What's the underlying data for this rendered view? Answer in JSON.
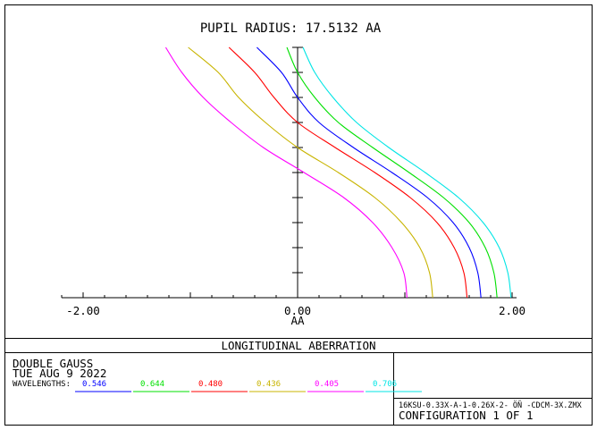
{
  "chart_data": {
    "type": "line",
    "title": "PUPIL RADIUS: 17.5132  AA",
    "xlabel": "AA",
    "xlim": [
      -2.2,
      2.0
    ],
    "ylim": [
      0,
      1
    ],
    "x_tick_labels": [
      {
        "value": -2.0,
        "label": "-2.00"
      },
      {
        "value": 0.0,
        "label": "0.00"
      },
      {
        "value": 2.0,
        "label": "2.00"
      }
    ],
    "grid": false,
    "series": [
      {
        "name": "0.546",
        "color": "#0000ff",
        "points": [
          [
            1.71,
            0
          ],
          [
            1.68,
            0.1
          ],
          [
            1.6,
            0.2
          ],
          [
            1.45,
            0.3
          ],
          [
            1.21,
            0.4
          ],
          [
            0.88,
            0.5
          ],
          [
            0.52,
            0.6
          ],
          [
            0.2,
            0.7
          ],
          [
            0.0,
            0.8
          ],
          [
            -0.15,
            0.9
          ],
          [
            -0.38,
            1.0
          ]
        ]
      },
      {
        "name": "0.644",
        "color": "#00e000",
        "points": [
          [
            1.86,
            0
          ],
          [
            1.83,
            0.1
          ],
          [
            1.75,
            0.2
          ],
          [
            1.6,
            0.3
          ],
          [
            1.36,
            0.4
          ],
          [
            1.04,
            0.5
          ],
          [
            0.7,
            0.6
          ],
          [
            0.38,
            0.7
          ],
          [
            0.16,
            0.8
          ],
          [
            0.0,
            0.9
          ],
          [
            -0.1,
            1.0
          ]
        ]
      },
      {
        "name": "0.480",
        "color": "#ff0000",
        "points": [
          [
            1.58,
            0
          ],
          [
            1.55,
            0.1
          ],
          [
            1.46,
            0.2
          ],
          [
            1.3,
            0.3
          ],
          [
            1.05,
            0.4
          ],
          [
            0.72,
            0.5
          ],
          [
            0.35,
            0.6
          ],
          [
            0.0,
            0.7
          ],
          [
            -0.22,
            0.8
          ],
          [
            -0.4,
            0.9
          ],
          [
            -0.64,
            1.0
          ]
        ]
      },
      {
        "name": "0.436",
        "color": "#c8b400",
        "points": [
          [
            1.26,
            0
          ],
          [
            1.23,
            0.1
          ],
          [
            1.14,
            0.2
          ],
          [
            0.97,
            0.3
          ],
          [
            0.72,
            0.4
          ],
          [
            0.38,
            0.5
          ],
          [
            0.0,
            0.6
          ],
          [
            -0.3,
            0.7
          ],
          [
            -0.55,
            0.8
          ],
          [
            -0.74,
            0.9
          ],
          [
            -1.02,
            1.0
          ]
        ]
      },
      {
        "name": "0.405",
        "color": "#ff00ff",
        "points": [
          [
            1.02,
            0
          ],
          [
            0.99,
            0.1
          ],
          [
            0.88,
            0.2
          ],
          [
            0.7,
            0.3
          ],
          [
            0.43,
            0.4
          ],
          [
            0.06,
            0.5
          ],
          [
            -0.32,
            0.6
          ],
          [
            -0.62,
            0.7
          ],
          [
            -0.88,
            0.8
          ],
          [
            -1.08,
            0.9
          ],
          [
            -1.23,
            1.0
          ]
        ]
      },
      {
        "name": "0.706",
        "color": "#00e5e5",
        "points": [
          [
            1.99,
            0
          ],
          [
            1.96,
            0.1
          ],
          [
            1.88,
            0.2
          ],
          [
            1.73,
            0.3
          ],
          [
            1.5,
            0.4
          ],
          [
            1.19,
            0.5
          ],
          [
            0.85,
            0.6
          ],
          [
            0.55,
            0.7
          ],
          [
            0.33,
            0.8
          ],
          [
            0.16,
            0.9
          ],
          [
            0.05,
            1.0
          ]
        ]
      }
    ]
  },
  "footer": {
    "chart_name": "LONGITUDINAL ABERRATION",
    "lens_name": "DOUBLE GAUSS",
    "date": "TUE AUG 9 2022",
    "wavelengths_label": "WAVELENGTHS:",
    "file_name": "16KSU-0.33X-A-1-0.26X-2- ÖÑ   -CDCM-3X.ZMX",
    "configuration": "CONFIGURATION  1  OF  1"
  }
}
